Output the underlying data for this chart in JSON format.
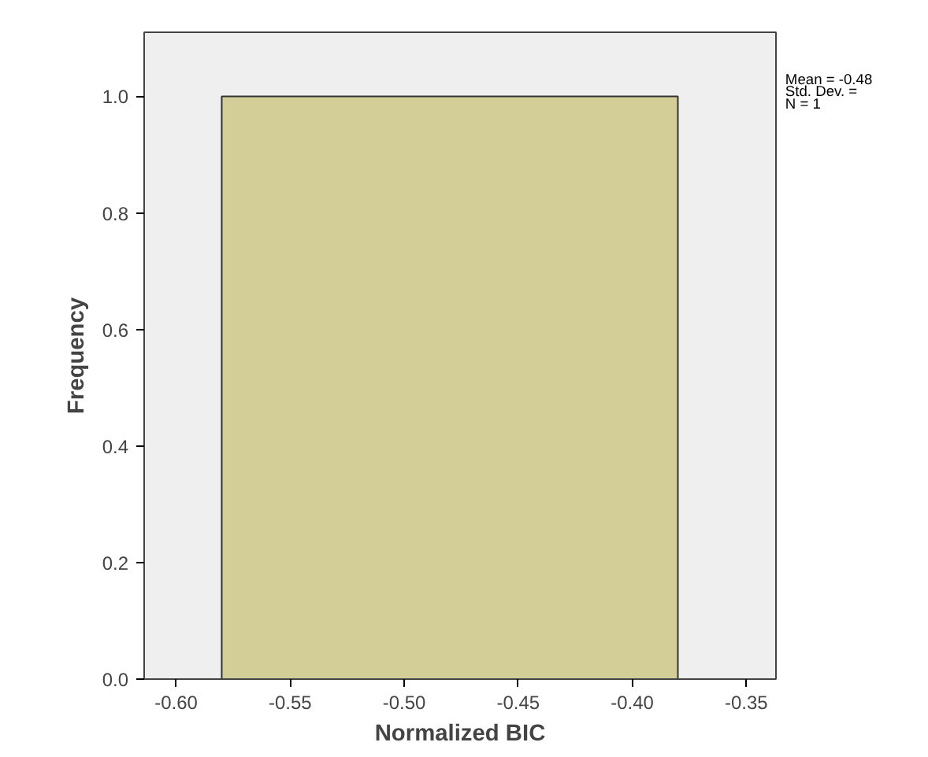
{
  "chart_data": {
    "type": "histogram",
    "xlabel": "Normalized BIC",
    "ylabel": "Frequency",
    "bins": [
      -0.58,
      -0.38
    ],
    "values": [
      1
    ],
    "color": "#d3ce97",
    "xlim": [
      -0.614,
      -0.337
    ],
    "xticks": [
      {
        "value": -0.6,
        "label": "-0.60"
      },
      {
        "value": -0.55,
        "label": "-0.55"
      },
      {
        "value": -0.5,
        "label": "-0.50"
      },
      {
        "value": -0.45,
        "label": "-0.45"
      },
      {
        "value": -0.4,
        "label": "-0.40"
      },
      {
        "value": -0.35,
        "label": "-0.35"
      }
    ],
    "ylim": [
      0,
      1.11
    ],
    "yticks": [
      {
        "value": 0,
        "label": "0.0"
      },
      0.2,
      0.4,
      0.6,
      0.8,
      {
        "value": 1,
        "label": "1.0"
      }
    ],
    "annotations": [
      "Mean = -0.48",
      "Std. Dev. =",
      "N = 1"
    ],
    "grid": false
  }
}
